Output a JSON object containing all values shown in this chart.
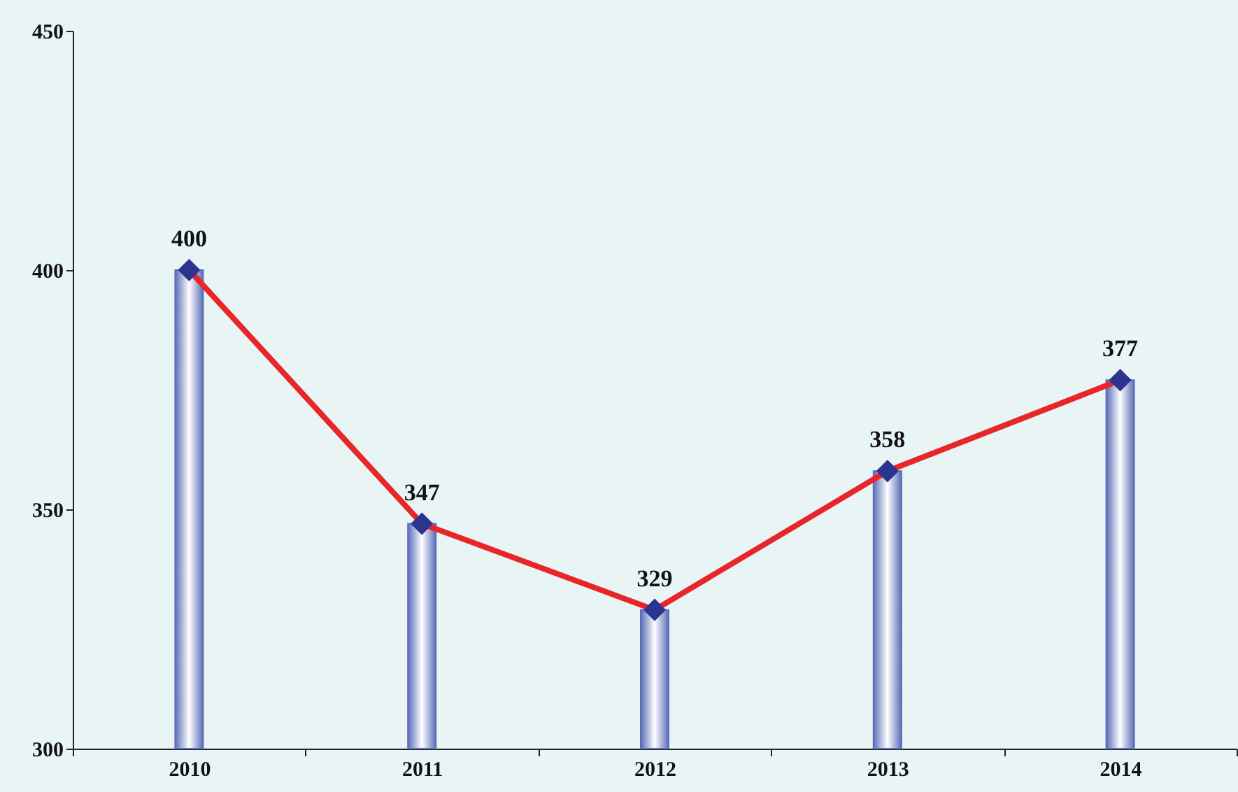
{
  "chart_data": {
    "type": "bar",
    "categories": [
      "2010",
      "2011",
      "2012",
      "2013",
      "2014"
    ],
    "series": [
      {
        "color": "#5b6db8",
        "values": [
          400,
          347,
          329,
          358,
          377
        ],
        "value_labels": [
          "400",
          "347",
          "329",
          "358",
          "377"
        ]
      },
      {
        "type": "line",
        "color": "#e8262a",
        "values": [
          400,
          347,
          329,
          358,
          377
        ]
      }
    ],
    "ylim": [
      300,
      450
    ],
    "yticks": [
      300,
      350,
      400,
      450
    ],
    "grid": false,
    "marker": "diamond"
  }
}
